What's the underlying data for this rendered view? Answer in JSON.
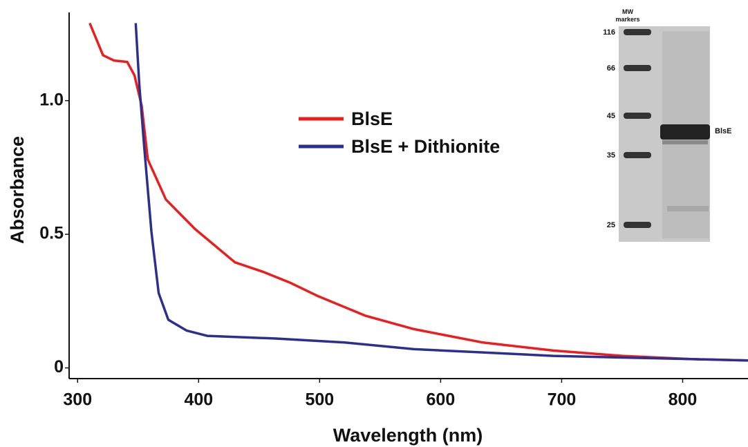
{
  "chart_data": {
    "type": "line",
    "x_label": "Wavelength (nm)",
    "y_label": "Absorbance",
    "xlim": [
      293,
      854
    ],
    "ylim": [
      -0.04,
      1.33
    ],
    "xticks": [
      300,
      400,
      500,
      600,
      700,
      800
    ],
    "yticks": [
      0,
      0.5,
      {
        "value": 1,
        "label": "1.0"
      }
    ],
    "series": [
      {
        "name": "BlsE",
        "color": "#ee1c1c",
        "x": [
          310,
          321,
          330,
          341,
          347,
          353,
          358,
          373,
          397,
          430,
          453,
          475,
          498,
          538,
          578,
          635,
          693,
          750,
          807,
          854
        ],
        "values": [
          1.29,
          1.17,
          1.15,
          1.145,
          1.095,
          0.98,
          0.78,
          0.63,
          0.52,
          0.395,
          0.36,
          0.32,
          0.27,
          0.195,
          0.145,
          0.095,
          0.065,
          0.045,
          0.033,
          0.028
        ]
      },
      {
        "name": "BlsE + Dithionite",
        "color": "#2b2f8f",
        "x": [
          348,
          351,
          355,
          361,
          367,
          375,
          390,
          407,
          464,
          521,
          578,
          635,
          693,
          807,
          854
        ],
        "values": [
          1.29,
          1.06,
          0.83,
          0.51,
          0.28,
          0.18,
          0.14,
          0.12,
          0.11,
          0.095,
          0.07,
          0.058,
          0.045,
          0.033,
          0.028
        ]
      }
    ],
    "inset": {
      "title": "MW markers",
      "markers": [
        116,
        66,
        45,
        35,
        25
      ],
      "band_label": "BlsE"
    }
  }
}
